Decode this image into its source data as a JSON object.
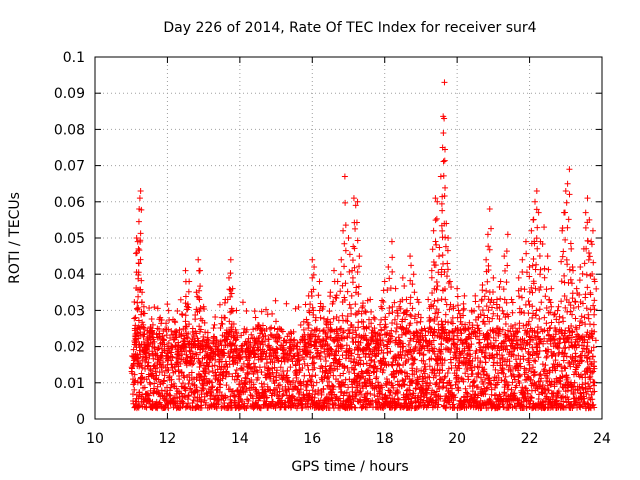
{
  "chart_data": {
    "type": "scatter",
    "title": "Day 226 of 2014, Rate Of TEC Index for receiver sur4",
    "xlabel": "GPS time / hours",
    "ylabel": "ROTI / TECUs",
    "xlim": [
      10,
      24
    ],
    "ylim": [
      0,
      0.1
    ],
    "x_ticks": [
      10,
      12,
      14,
      16,
      18,
      20,
      22,
      24
    ],
    "x_tick_labels": [
      "10",
      "12",
      "14",
      "16",
      "18",
      "20",
      "22",
      "24"
    ],
    "y_ticks": [
      0,
      0.01,
      0.02,
      0.03,
      0.04,
      0.05,
      0.06,
      0.07,
      0.08,
      0.09,
      0.1
    ],
    "y_tick_labels": [
      "0",
      "0.01",
      "0.02",
      "0.03",
      "0.04",
      "0.05",
      "0.06",
      "0.07",
      "0.08",
      "0.09",
      "0.1"
    ],
    "grid": true,
    "marker": "+",
    "marker_color": "#ff0000",
    "series": [
      {
        "name": "sur4 ROTI",
        "points": [
          [
            11.05,
            0.011
          ],
          [
            11.1,
            0.025
          ],
          [
            11.12,
            0.028
          ],
          [
            11.15,
            0.05
          ],
          [
            11.18,
            0.049
          ],
          [
            11.2,
            0.047
          ],
          [
            11.22,
            0.058
          ],
          [
            11.24,
            0.061
          ],
          [
            11.26,
            0.063
          ],
          [
            11.3,
            0.035
          ],
          [
            11.35,
            0.031
          ],
          [
            11.4,
            0.018
          ],
          [
            11.5,
            0.024
          ],
          [
            11.6,
            0.026
          ],
          [
            11.7,
            0.012
          ],
          [
            11.8,
            0.028
          ],
          [
            11.9,
            0.022
          ],
          [
            12.0,
            0.015
          ],
          [
            12.1,
            0.02
          ],
          [
            12.2,
            0.027
          ],
          [
            12.3,
            0.018
          ],
          [
            12.4,
            0.029
          ],
          [
            12.5,
            0.032
          ],
          [
            12.5,
            0.041
          ],
          [
            12.6,
            0.038
          ],
          [
            12.7,
            0.025
          ],
          [
            12.8,
            0.035
          ],
          [
            12.85,
            0.044
          ],
          [
            12.9,
            0.041
          ],
          [
            13.0,
            0.031
          ],
          [
            13.1,
            0.022
          ],
          [
            13.2,
            0.018
          ],
          [
            13.3,
            0.026
          ],
          [
            13.4,
            0.019
          ],
          [
            13.5,
            0.028
          ],
          [
            13.6,
            0.033
          ],
          [
            13.7,
            0.039
          ],
          [
            13.75,
            0.044
          ],
          [
            13.8,
            0.036
          ],
          [
            13.9,
            0.024
          ],
          [
            14.0,
            0.017
          ],
          [
            14.2,
            0.019
          ],
          [
            14.4,
            0.021
          ],
          [
            14.5,
            0.026
          ],
          [
            14.6,
            0.018
          ],
          [
            14.8,
            0.022
          ],
          [
            15.0,
            0.017
          ],
          [
            15.2,
            0.018
          ],
          [
            15.4,
            0.02
          ],
          [
            15.6,
            0.016
          ],
          [
            15.8,
            0.02
          ],
          [
            15.9,
            0.034
          ],
          [
            16.0,
            0.044
          ],
          [
            16.05,
            0.042
          ],
          [
            16.1,
            0.028
          ],
          [
            16.2,
            0.038
          ],
          [
            16.3,
            0.031
          ],
          [
            16.4,
            0.027
          ],
          [
            16.5,
            0.035
          ],
          [
            16.6,
            0.041
          ],
          [
            16.7,
            0.038
          ],
          [
            16.8,
            0.044
          ],
          [
            16.85,
            0.052
          ],
          [
            16.9,
            0.067
          ],
          [
            17.0,
            0.05
          ],
          [
            17.1,
            0.041
          ],
          [
            17.15,
            0.061
          ],
          [
            17.2,
            0.059
          ],
          [
            17.25,
            0.06
          ],
          [
            17.3,
            0.045
          ],
          [
            17.4,
            0.032
          ],
          [
            17.5,
            0.025
          ],
          [
            17.6,
            0.033
          ],
          [
            17.7,
            0.028
          ],
          [
            17.8,
            0.021
          ],
          [
            17.9,
            0.031
          ],
          [
            18.0,
            0.038
          ],
          [
            18.1,
            0.042
          ],
          [
            18.2,
            0.049
          ],
          [
            18.3,
            0.036
          ],
          [
            18.4,
            0.031
          ],
          [
            18.5,
            0.039
          ],
          [
            18.6,
            0.033
          ],
          [
            18.7,
            0.045
          ],
          [
            18.8,
            0.04
          ],
          [
            18.9,
            0.033
          ],
          [
            19.0,
            0.028
          ],
          [
            19.1,
            0.025
          ],
          [
            19.2,
            0.033
          ],
          [
            19.3,
            0.041
          ],
          [
            19.35,
            0.052
          ],
          [
            19.4,
            0.061
          ],
          [
            19.45,
            0.06
          ],
          [
            19.5,
            0.045
          ],
          [
            19.55,
            0.067
          ],
          [
            19.6,
            0.075
          ],
          [
            19.62,
            0.079
          ],
          [
            19.64,
            0.083
          ],
          [
            19.65,
            0.093
          ],
          [
            19.7,
            0.054
          ],
          [
            19.75,
            0.05
          ],
          [
            19.8,
            0.038
          ],
          [
            19.9,
            0.031
          ],
          [
            20.0,
            0.036
          ],
          [
            20.1,
            0.028
          ],
          [
            20.2,
            0.034
          ],
          [
            20.3,
            0.025
          ],
          [
            20.4,
            0.03
          ],
          [
            20.5,
            0.034
          ],
          [
            20.6,
            0.031
          ],
          [
            20.7,
            0.037
          ],
          [
            20.8,
            0.044
          ],
          [
            20.85,
            0.051
          ],
          [
            20.9,
            0.058
          ],
          [
            21.0,
            0.039
          ],
          [
            21.1,
            0.033
          ],
          [
            21.2,
            0.038
          ],
          [
            21.3,
            0.045
          ],
          [
            21.4,
            0.051
          ],
          [
            21.5,
            0.033
          ],
          [
            21.6,
            0.026
          ],
          [
            21.7,
            0.039
          ],
          [
            21.8,
            0.044
          ],
          [
            21.9,
            0.049
          ],
          [
            22.0,
            0.042
          ],
          [
            22.05,
            0.052
          ],
          [
            22.1,
            0.055
          ],
          [
            22.15,
            0.06
          ],
          [
            22.2,
            0.063
          ],
          [
            22.25,
            0.057
          ],
          [
            22.3,
            0.049
          ],
          [
            22.4,
            0.053
          ],
          [
            22.5,
            0.045
          ],
          [
            22.6,
            0.036
          ],
          [
            22.7,
            0.029
          ],
          [
            22.8,
            0.031
          ],
          [
            22.9,
            0.052
          ],
          [
            22.95,
            0.057
          ],
          [
            23.0,
            0.063
          ],
          [
            23.05,
            0.065
          ],
          [
            23.1,
            0.069
          ],
          [
            23.15,
            0.047
          ],
          [
            23.2,
            0.041
          ],
          [
            23.3,
            0.036
          ],
          [
            23.4,
            0.042
          ],
          [
            23.5,
            0.047
          ],
          [
            23.55,
            0.057
          ],
          [
            23.6,
            0.061
          ],
          [
            23.65,
            0.055
          ],
          [
            23.7,
            0.049
          ],
          [
            23.75,
            0.052
          ],
          [
            23.8,
            0.038
          ]
        ],
        "band": {
          "x_start": 11.05,
          "x_end": 23.8,
          "typical_min": 0.003,
          "typical_max": 0.02
        }
      }
    ]
  }
}
